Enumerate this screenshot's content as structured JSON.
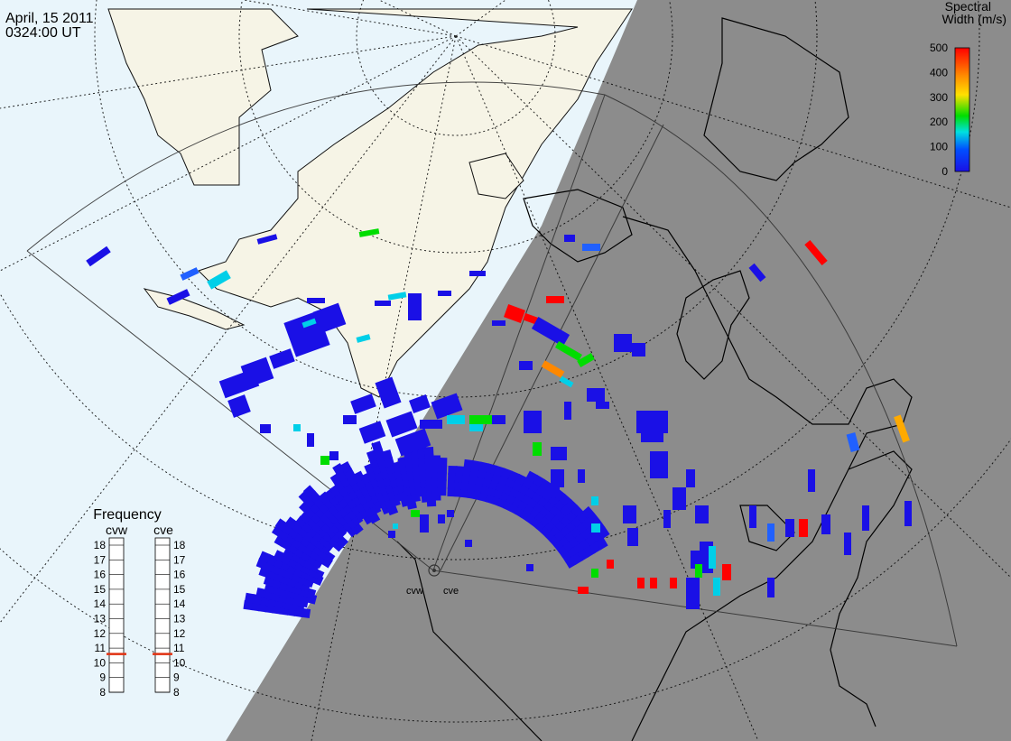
{
  "header": {
    "date": "April, 15 2011",
    "time": "0324:00 UT"
  },
  "colorbar": {
    "title_line1": "Spectral",
    "title_line2": "Width (m/s)",
    "ticks": [
      "500",
      "400",
      "300",
      "200",
      "100",
      "0"
    ],
    "palette": [
      "#ff0000",
      "#ff8800",
      "#ffe000",
      "#00dd00",
      "#00e0e0",
      "#0050ff",
      "#1a10e6"
    ]
  },
  "frequency_panel": {
    "title": "Frequency",
    "radars": [
      {
        "label": "cvw",
        "selected_mhz": 10.6
      },
      {
        "label": "cve",
        "selected_mhz": 10.6
      }
    ],
    "ticks": [
      "18",
      "17",
      "16",
      "15",
      "14",
      "13",
      "12",
      "11",
      "10",
      "9",
      "8"
    ]
  },
  "sites": {
    "cvw_label": "cvw",
    "cve_label": "cve"
  },
  "colors": {
    "ocean": "#e9f5fb",
    "land_day": "#f6f4e6",
    "night": "#8c8c8c",
    "echo_low": "#1a10e6",
    "freq_marker": "#e03010"
  }
}
